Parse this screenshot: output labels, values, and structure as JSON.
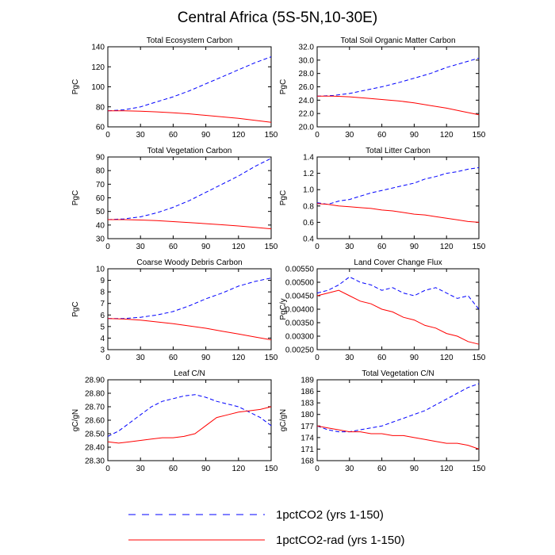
{
  "title": "Central Africa (5S-5N,10-30E)",
  "colors": {
    "series1": "#0000ff",
    "series2": "#ff0000"
  },
  "legend": [
    {
      "name": "1pctCO2 (yrs 1-150)",
      "color": "#0000ff",
      "dash": true
    },
    {
      "name": "1pctCO2-rad (yrs 1-150)",
      "color": "#ff0000",
      "dash": false
    }
  ],
  "chart_data": [
    {
      "type": "line",
      "title": "Total Ecosystem Carbon",
      "ylabel": "PgC",
      "xlim": [
        0,
        150
      ],
      "ylim": [
        60,
        140
      ],
      "xticks": [
        "0",
        "30",
        "60",
        "90",
        "120",
        "150"
      ],
      "yticks": [
        "60",
        "80",
        "100",
        "120",
        "140"
      ],
      "series": [
        {
          "name": "1pctCO2 (yrs 1-150)",
          "x": [
            0,
            15,
            30,
            45,
            60,
            75,
            90,
            105,
            120,
            135,
            150
          ],
          "values": [
            76,
            77,
            80,
            85,
            90,
            96,
            103,
            110,
            117,
            124,
            130
          ]
        },
        {
          "name": "1pctCO2-rad (yrs 1-150)",
          "x": [
            0,
            15,
            30,
            45,
            60,
            75,
            90,
            105,
            120,
            135,
            150
          ],
          "values": [
            76,
            76,
            75.6,
            75,
            74,
            73,
            71.5,
            70,
            68.5,
            66.5,
            64.5
          ]
        }
      ]
    },
    {
      "type": "line",
      "title": "Total Soil Organic Matter Carbon",
      "ylabel": "PgC",
      "xlim": [
        0,
        150
      ],
      "ylim": [
        20,
        32
      ],
      "xticks": [
        "0",
        "30",
        "60",
        "90",
        "120",
        "150"
      ],
      "yticks": [
        "20.0",
        "22.0",
        "24.0",
        "26.0",
        "28.0",
        "30.0",
        "32.0"
      ],
      "series": [
        {
          "name": "1pctCO2 (yrs 1-150)",
          "x": [
            0,
            15,
            30,
            45,
            60,
            75,
            90,
            105,
            120,
            135,
            150
          ],
          "values": [
            24.6,
            24.7,
            25.0,
            25.5,
            26.0,
            26.6,
            27.3,
            28.0,
            28.9,
            29.6,
            30.3
          ]
        },
        {
          "name": "1pctCO2-rad (yrs 1-150)",
          "x": [
            0,
            15,
            30,
            45,
            60,
            75,
            90,
            105,
            120,
            135,
            150
          ],
          "values": [
            24.6,
            24.6,
            24.5,
            24.3,
            24.1,
            23.9,
            23.6,
            23.2,
            22.8,
            22.3,
            21.8
          ]
        }
      ]
    },
    {
      "type": "line",
      "title": "Total Vegetation Carbon",
      "ylabel": "PgC",
      "xlim": [
        0,
        150
      ],
      "ylim": [
        30,
        90
      ],
      "xticks": [
        "0",
        "30",
        "60",
        "90",
        "120",
        "150"
      ],
      "yticks": [
        "30",
        "40",
        "50",
        "60",
        "70",
        "80",
        "90"
      ],
      "series": [
        {
          "name": "1pctCO2 (yrs 1-150)",
          "x": [
            0,
            15,
            30,
            45,
            60,
            75,
            90,
            105,
            120,
            135,
            150
          ],
          "values": [
            44,
            44.5,
            46,
            49,
            53,
            58,
            64,
            70,
            76,
            83,
            89
          ]
        },
        {
          "name": "1pctCO2-rad (yrs 1-150)",
          "x": [
            0,
            15,
            30,
            45,
            60,
            75,
            90,
            105,
            120,
            135,
            150
          ],
          "values": [
            44,
            44,
            43.7,
            43.2,
            42.5,
            41.8,
            41,
            40.2,
            39.3,
            38.3,
            37.2
          ]
        }
      ]
    },
    {
      "type": "line",
      "title": "Total Litter Carbon",
      "ylabel": "PgC",
      "xlim": [
        0,
        150
      ],
      "ylim": [
        0.4,
        1.4
      ],
      "xticks": [
        "0",
        "30",
        "60",
        "90",
        "120",
        "150"
      ],
      "yticks": [
        "0.4",
        "0.6",
        "0.8",
        "1.0",
        "1.2",
        "1.4"
      ],
      "series": [
        {
          "name": "1pctCO2 (yrs 1-150)",
          "x": [
            0,
            10,
            20,
            30,
            40,
            50,
            60,
            70,
            80,
            90,
            100,
            110,
            120,
            130,
            140,
            150
          ],
          "values": [
            0.84,
            0.82,
            0.86,
            0.88,
            0.92,
            0.96,
            0.99,
            1.02,
            1.05,
            1.08,
            1.13,
            1.16,
            1.2,
            1.22,
            1.25,
            1.27
          ]
        },
        {
          "name": "1pctCO2-rad (yrs 1-150)",
          "x": [
            0,
            10,
            20,
            30,
            40,
            50,
            60,
            70,
            80,
            90,
            100,
            110,
            120,
            130,
            140,
            150
          ],
          "values": [
            0.83,
            0.82,
            0.8,
            0.79,
            0.78,
            0.77,
            0.75,
            0.74,
            0.72,
            0.7,
            0.69,
            0.67,
            0.65,
            0.63,
            0.61,
            0.6
          ]
        }
      ]
    },
    {
      "type": "line",
      "title": "Coarse Woody Debris Carbon",
      "ylabel": "PgC",
      "xlim": [
        0,
        150
      ],
      "ylim": [
        3,
        10
      ],
      "xticks": [
        "0",
        "30",
        "60",
        "90",
        "120",
        "150"
      ],
      "yticks": [
        "3",
        "4",
        "5",
        "6",
        "7",
        "8",
        "9",
        "10"
      ],
      "series": [
        {
          "name": "1pctCO2 (yrs 1-150)",
          "x": [
            0,
            15,
            30,
            45,
            60,
            75,
            90,
            105,
            120,
            135,
            150
          ],
          "values": [
            5.7,
            5.7,
            5.8,
            6.0,
            6.3,
            6.8,
            7.4,
            7.9,
            8.5,
            8.9,
            9.2
          ]
        },
        {
          "name": "1pctCO2-rad (yrs 1-150)",
          "x": [
            0,
            15,
            30,
            45,
            60,
            75,
            90,
            105,
            120,
            135,
            150
          ],
          "values": [
            5.7,
            5.65,
            5.55,
            5.4,
            5.25,
            5.05,
            4.85,
            4.6,
            4.35,
            4.1,
            3.85
          ]
        }
      ]
    },
    {
      "type": "line",
      "title": "Land Cover Change Flux",
      "ylabel": "PgC/y",
      "xlim": [
        0,
        150
      ],
      "ylim": [
        0.0025,
        0.0055
      ],
      "xticks": [
        "0",
        "30",
        "60",
        "90",
        "120",
        "150"
      ],
      "yticks": [
        "0.00250",
        "0.00300",
        "0.00350",
        "0.00400",
        "0.00450",
        "0.00500",
        "0.00550"
      ],
      "series": [
        {
          "name": "1pctCO2 (yrs 1-150)",
          "x": [
            0,
            10,
            20,
            30,
            40,
            50,
            60,
            70,
            80,
            90,
            100,
            110,
            120,
            130,
            140,
            150
          ],
          "values": [
            0.0046,
            0.0047,
            0.0049,
            0.0052,
            0.005,
            0.0049,
            0.0047,
            0.0048,
            0.0046,
            0.0045,
            0.0047,
            0.0048,
            0.0046,
            0.0044,
            0.0045,
            0.004
          ]
        },
        {
          "name": "1pctCO2-rad (yrs 1-150)",
          "x": [
            0,
            10,
            20,
            30,
            40,
            50,
            60,
            70,
            80,
            90,
            100,
            110,
            120,
            130,
            140,
            150
          ],
          "values": [
            0.0045,
            0.0046,
            0.0047,
            0.0045,
            0.0043,
            0.0042,
            0.004,
            0.0039,
            0.0037,
            0.0036,
            0.0034,
            0.0033,
            0.0031,
            0.003,
            0.0028,
            0.0027
          ]
        }
      ]
    },
    {
      "type": "line",
      "title": "Leaf C/N",
      "ylabel": "gC/gN",
      "xlim": [
        0,
        150
      ],
      "ylim": [
        28.3,
        28.9
      ],
      "xticks": [
        "0",
        "30",
        "60",
        "90",
        "120",
        "150"
      ],
      "yticks": [
        "28.30",
        "28.40",
        "28.50",
        "28.60",
        "28.70",
        "28.80",
        "28.90"
      ],
      "series": [
        {
          "name": "1pctCO2 (yrs 1-150)",
          "x": [
            0,
            10,
            20,
            30,
            40,
            50,
            60,
            70,
            80,
            90,
            100,
            110,
            120,
            130,
            140,
            150
          ],
          "values": [
            28.48,
            28.52,
            28.58,
            28.64,
            28.7,
            28.74,
            28.76,
            28.78,
            28.79,
            28.77,
            28.74,
            28.72,
            28.7,
            28.66,
            28.62,
            28.56
          ]
        },
        {
          "name": "1pctCO2-rad (yrs 1-150)",
          "x": [
            0,
            10,
            20,
            30,
            40,
            50,
            60,
            70,
            80,
            90,
            100,
            110,
            120,
            130,
            140,
            150
          ],
          "values": [
            28.44,
            28.43,
            28.44,
            28.45,
            28.46,
            28.47,
            28.47,
            28.48,
            28.5,
            28.56,
            28.62,
            28.64,
            28.66,
            28.67,
            28.68,
            28.7
          ]
        }
      ]
    },
    {
      "type": "line",
      "title": "Total Vegetation C/N",
      "ylabel": "gC/gN",
      "xlim": [
        0,
        150
      ],
      "ylim": [
        168,
        189
      ],
      "xticks": [
        "0",
        "30",
        "60",
        "90",
        "120",
        "150"
      ],
      "yticks": [
        "168",
        "171",
        "174",
        "177",
        "180",
        "183",
        "186",
        "189"
      ],
      "series": [
        {
          "name": "1pctCO2 (yrs 1-150)",
          "x": [
            0,
            10,
            20,
            30,
            40,
            50,
            60,
            70,
            80,
            90,
            100,
            110,
            120,
            130,
            140,
            150
          ],
          "values": [
            177,
            176,
            175.5,
            175.5,
            176,
            176.5,
            177,
            178,
            179,
            180,
            181,
            182.5,
            184,
            185.5,
            187,
            188
          ]
        },
        {
          "name": "1pctCO2-rad (yrs 1-150)",
          "x": [
            0,
            10,
            20,
            30,
            40,
            50,
            60,
            70,
            80,
            90,
            100,
            110,
            120,
            130,
            140,
            150
          ],
          "values": [
            177,
            176.5,
            176,
            175.5,
            175.5,
            175,
            175,
            174.5,
            174.5,
            174,
            173.5,
            173,
            172.5,
            172.5,
            172,
            171
          ]
        }
      ]
    }
  ]
}
